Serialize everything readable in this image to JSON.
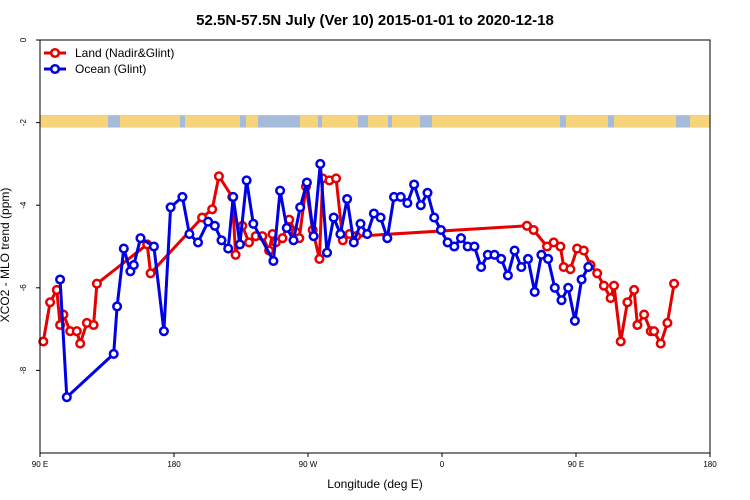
{
  "chart_data": {
    "type": "line",
    "title": "52.5N-57.5N July (Ver 10)   2015-01-01 to 2020-12-18",
    "xlabel": "Longitude (deg E)",
    "ylabel": "XCO2 - MLO trend (ppm)",
    "xlim": [
      90,
      450
    ],
    "ylim": [
      -10,
      0
    ],
    "x_ticks": [
      90,
      162,
      234,
      306,
      378,
      450
    ],
    "x_tick_labels": [
      "90 E",
      "180",
      "90 W",
      "0",
      "90 E",
      "180"
    ],
    "y_ticks": [
      0,
      -2,
      -4,
      -6,
      -8
    ],
    "y_tick_labels": [
      "0",
      "-2",
      "-4",
      "-6",
      "-8"
    ],
    "legend_position": "top-left",
    "colors": {
      "land": "#e60000",
      "ocean": "#0000e6",
      "map_land": "#f7d37a",
      "map_ocean": "#a6bbd9"
    },
    "series": [
      {
        "name": "Land (Nadir&Glint)",
        "color": "#e60000",
        "x": [
          91.8,
          95.4,
          99.0,
          100.8,
          102.6,
          106.2,
          109.8,
          111.6,
          115.2,
          118.8,
          120.6,
          147.6,
          149.4,
          177.1,
          182.5,
          186.1,
          193.3,
          195.1,
          198.7,
          202.3,
          205.9,
          209.5,
          213.1,
          214.9,
          216.7,
          220.3,
          223.9,
          227.5,
          229.3,
          232.9,
          236.5,
          240.1,
          241.9,
          245.5,
          249.1,
          252.7,
          256.3,
          259.9,
          351.6,
          355.2,
          362.4,
          366.0,
          369.6,
          371.4,
          375.0,
          378.6,
          382.2,
          385.8,
          389.4,
          393.0,
          396.6,
          398.4,
          402.0,
          405.6,
          409.2,
          411.0,
          414.6,
          418.2,
          419.9,
          423.5,
          427.1,
          430.7
        ],
        "y": [
          -7.3,
          -6.35,
          -6.05,
          -6.9,
          -6.65,
          -7.05,
          -7.05,
          -7.35,
          -6.85,
          -6.9,
          -5.9,
          -4.95,
          -5.65,
          -4.3,
          -4.1,
          -3.3,
          -3.8,
          -5.2,
          -4.5,
          -4.9,
          -4.75,
          -4.75,
          -5.1,
          -4.7,
          -4.9,
          -4.8,
          -4.35,
          -4.65,
          -4.8,
          -3.55,
          -4.6,
          -5.3,
          -3.35,
          -3.4,
          -3.35,
          -4.85,
          -4.7,
          -4.75,
          -4.5,
          -4.6,
          -5.0,
          -4.9,
          -5.0,
          -5.5,
          -5.55,
          -5.05,
          -5.1,
          -5.45,
          -5.65,
          -5.95,
          -6.25,
          -5.95,
          -7.3,
          -6.35,
          -6.05,
          -6.9,
          -6.65,
          -7.05,
          -7.05,
          -7.35,
          -6.85,
          -5.9
        ]
      },
      {
        "name": "Ocean (Glint)",
        "color": "#0000e6",
        "x": [
          100.8,
          104.4,
          129.6,
          131.4,
          135.0,
          138.6,
          140.4,
          144.0,
          151.2,
          156.6,
          160.2,
          166.5,
          170.3,
          174.9,
          180.3,
          183.9,
          187.5,
          191.1,
          193.8,
          197.4,
          201.0,
          204.6,
          215.4,
          219.0,
          222.6,
          226.2,
          229.8,
          233.4,
          237.0,
          240.6,
          244.2,
          247.8,
          251.4,
          255.0,
          258.6,
          262.2,
          265.8,
          269.4,
          273.0,
          276.6,
          280.2,
          283.8,
          287.4,
          291.0,
          294.6,
          298.2,
          301.8,
          305.4,
          309.0,
          312.6,
          316.2,
          319.8,
          323.4,
          327.0,
          330.6,
          334.2,
          337.8,
          341.4,
          345.0,
          348.6,
          352.2,
          355.8,
          359.4,
          363.0,
          366.6,
          370.2,
          373.8,
          377.4,
          381.0,
          384.6
        ],
        "y": [
          -5.8,
          -8.65,
          -7.6,
          -6.45,
          -5.05,
          -5.6,
          -5.45,
          -4.8,
          -5.0,
          -7.05,
          -4.05,
          -3.8,
          -4.7,
          -4.9,
          -4.4,
          -4.5,
          -4.85,
          -5.05,
          -3.8,
          -4.95,
          -3.4,
          -4.45,
          -5.35,
          -3.65,
          -4.55,
          -4.85,
          -4.05,
          -3.45,
          -4.75,
          -3.0,
          -5.15,
          -4.3,
          -4.7,
          -3.85,
          -4.9,
          -4.45,
          -4.7,
          -4.2,
          -4.3,
          -4.8,
          -3.8,
          -3.8,
          -3.95,
          -3.5,
          -4.0,
          -3.7,
          -4.3,
          -4.6,
          -4.9,
          -5.0,
          -4.8,
          -5.0,
          -5.0,
          -5.5,
          -5.2,
          -5.2,
          -5.3,
          -5.7,
          -5.1,
          -5.5,
          -5.3,
          -6.1,
          -5.2,
          -5.3,
          -6.0,
          -6.3,
          -6.0,
          -6.8,
          -5.8,
          -5.5
        ]
      }
    ]
  }
}
